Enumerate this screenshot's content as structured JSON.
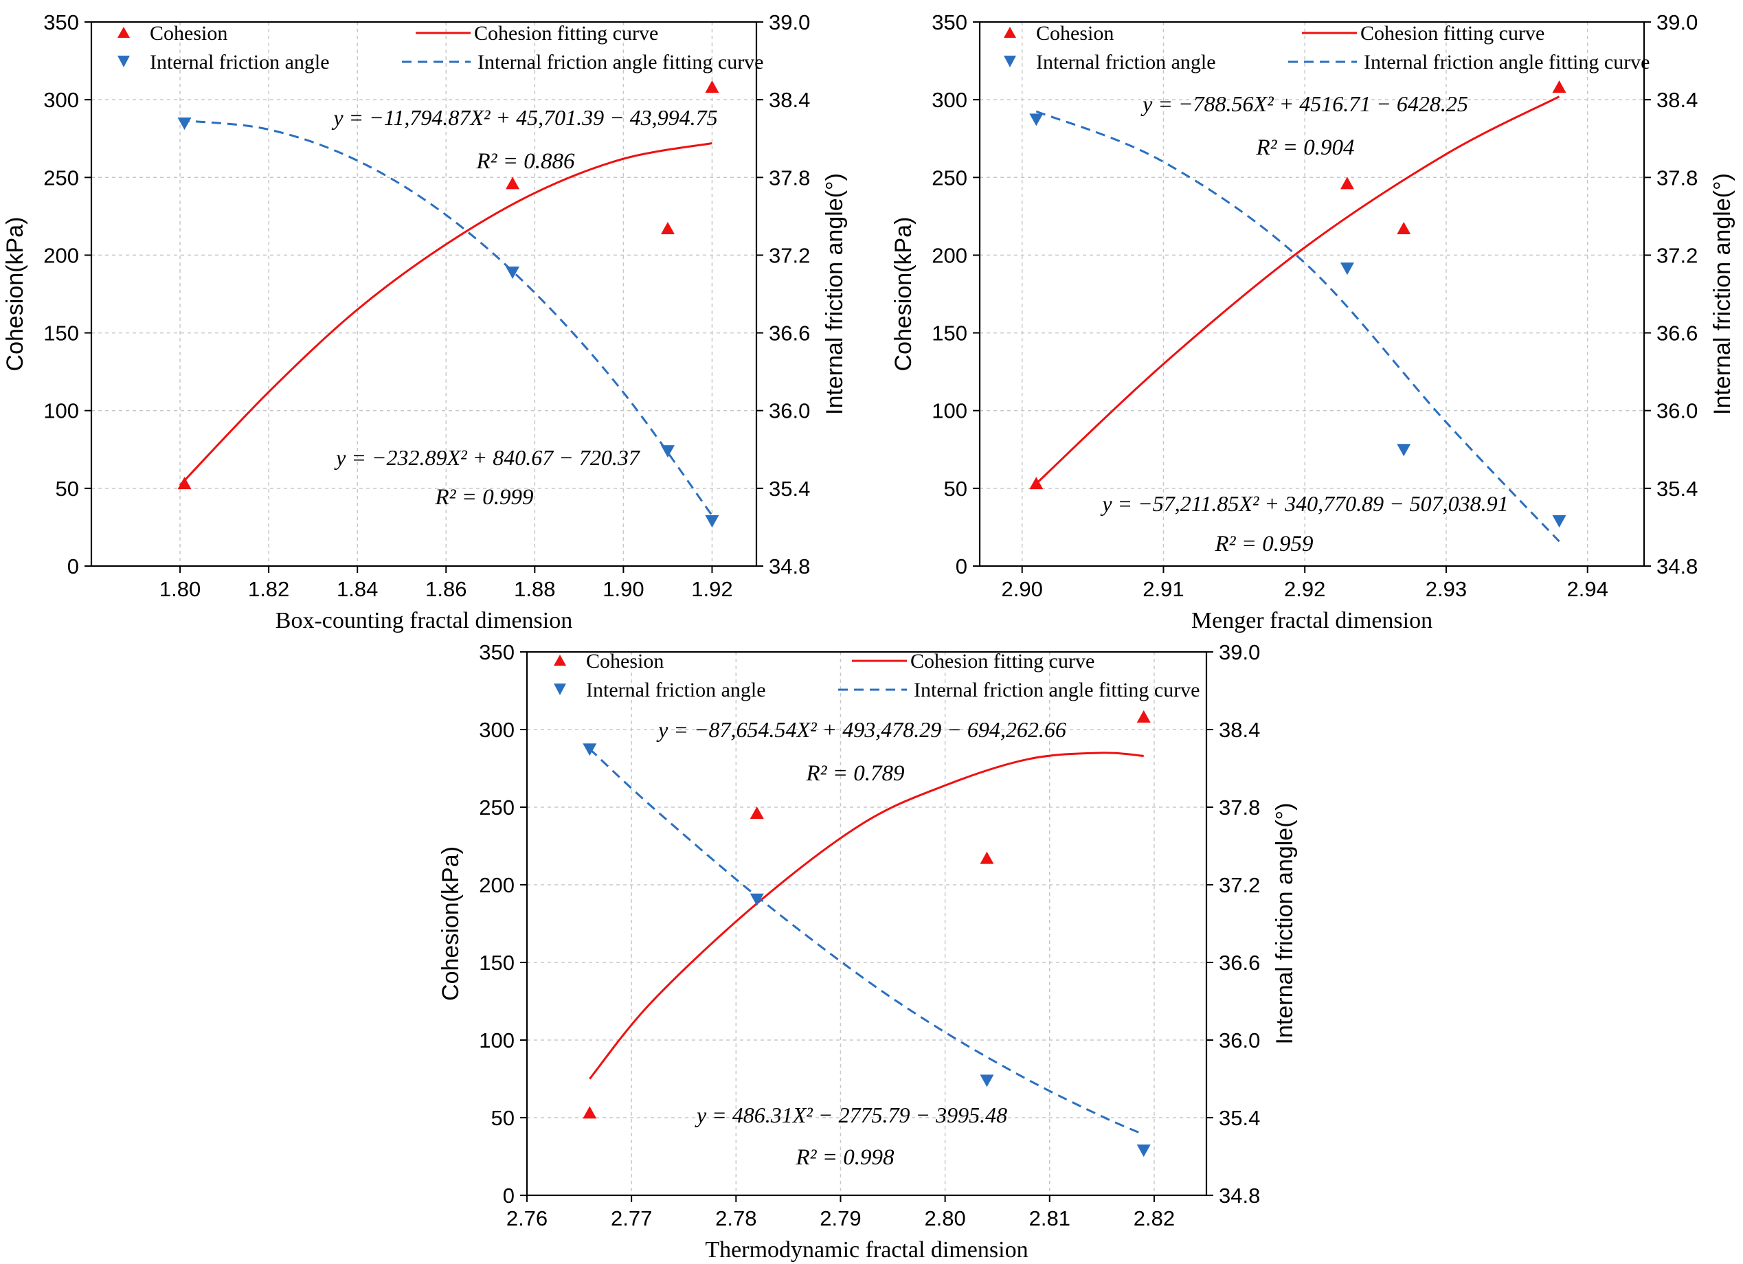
{
  "legend": {
    "cohesion": "Cohesion",
    "cohesion_fit": "Cohesion fitting curve",
    "friction": "Internal friction angle",
    "friction_fit": "Internal friction angle fitting curve"
  },
  "colors": {
    "cohesion": "#ee1111",
    "friction": "#2a6fbf",
    "grid": "#c8c8c8"
  },
  "chart_data": [
    {
      "type": "scatter",
      "xlabel": "Box-counting fractal dimension",
      "ylabel_left": "Cohesion(kPa)",
      "ylabel_right": "Internal friction angle(°)",
      "xlim": [
        1.78,
        1.93
      ],
      "xticks": [
        "1.80",
        "1.82",
        "1.84",
        "1.86",
        "1.88",
        "1.90",
        "1.92"
      ],
      "ylim_left": [
        0,
        350
      ],
      "yticks_left": [
        "0",
        "50",
        "100",
        "150",
        "200",
        "250",
        "300",
        "350"
      ],
      "ylim_right": [
        34.8,
        39.0
      ],
      "yticks_right": [
        "34.8",
        "35.4",
        "36.0",
        "36.6",
        "37.2",
        "37.8",
        "38.4",
        "39.0"
      ],
      "cohesion_points": {
        "x": [
          1.801,
          1.875,
          1.91,
          1.92
        ],
        "y": [
          53,
          246,
          217,
          308
        ]
      },
      "friction_points": {
        "x": [
          1.801,
          1.875,
          1.91,
          1.92
        ],
        "y": [
          38.22,
          37.07,
          35.69,
          35.15
        ]
      },
      "cohesion_curve": {
        "x": [
          1.8,
          1.82,
          1.84,
          1.86,
          1.88,
          1.9,
          1.92
        ],
        "y": [
          52,
          112,
          165,
          207,
          240,
          262,
          272
        ]
      },
      "friction_curve": {
        "x": [
          1.8,
          1.82,
          1.84,
          1.86,
          1.88,
          1.9,
          1.92
        ],
        "y": [
          38.24,
          38.17,
          37.93,
          37.51,
          36.91,
          36.14,
          35.19
        ]
      },
      "cohesion_equation": "y = −11,794.87X² + 45,701.39 − 43,994.75",
      "cohesion_r2": "R² = 0.886",
      "friction_equation": "y = −232.89X² + 840.67 − 720.37",
      "friction_r2": "R² = 0.999"
    },
    {
      "type": "scatter",
      "xlabel": "Menger fractal dimension",
      "ylabel_left": "Cohesion(kPa)",
      "ylabel_right": "Internal friction angle(°)",
      "xlim": [
        2.897,
        2.944
      ],
      "xticks": [
        "2.90",
        "2.91",
        "2.92",
        "2.93",
        "2.94"
      ],
      "ylim_left": [
        0,
        350
      ],
      "yticks_left": [
        "0",
        "50",
        "100",
        "150",
        "200",
        "250",
        "300",
        "350"
      ],
      "ylim_right": [
        34.8,
        39.0
      ],
      "yticks_right": [
        "34.8",
        "35.4",
        "36.0",
        "36.6",
        "37.2",
        "37.8",
        "38.4",
        "39.0"
      ],
      "cohesion_points": {
        "x": [
          2.901,
          2.923,
          2.927,
          2.938
        ],
        "y": [
          53,
          246,
          217,
          308
        ]
      },
      "friction_points": {
        "x": [
          2.901,
          2.923,
          2.927,
          2.938
        ],
        "y": [
          38.25,
          37.1,
          35.7,
          35.15
        ]
      },
      "cohesion_curve": {
        "x": [
          2.901,
          2.91,
          2.92,
          2.93,
          2.938
        ],
        "y": [
          53,
          130,
          205,
          265,
          302
        ]
      },
      "friction_curve": {
        "x": [
          2.901,
          2.91,
          2.92,
          2.93,
          2.938
        ],
        "y": [
          38.31,
          37.92,
          37.14,
          35.91,
          34.99
        ]
      },
      "cohesion_equation": "y = −788.56X² + 4516.71 − 6428.25",
      "cohesion_r2": "R² = 0.904",
      "friction_equation": "y = −57,211.85X² + 340,770.89 − 507,038.91",
      "friction_r2": "R² = 0.959"
    },
    {
      "type": "scatter",
      "xlabel": "Thermodynamic fractal dimension",
      "ylabel_left": "Cohesion(kPa)",
      "ylabel_right": "Internal friction angle(°)",
      "xlim": [
        2.76,
        2.825
      ],
      "xticks": [
        "2.76",
        "2.77",
        "2.78",
        "2.79",
        "2.80",
        "2.81",
        "2.82"
      ],
      "ylim_left": [
        0,
        350
      ],
      "yticks_left": [
        "0",
        "50",
        "100",
        "150",
        "200",
        "250",
        "300",
        "350"
      ],
      "ylim_right": [
        34.8,
        39.0
      ],
      "yticks_right": [
        "34.8",
        "35.4",
        "36.0",
        "36.6",
        "37.2",
        "37.8",
        "38.4",
        "39.0"
      ],
      "cohesion_points": {
        "x": [
          2.766,
          2.782,
          2.804,
          2.819
        ],
        "y": [
          53,
          246,
          217,
          308
        ]
      },
      "friction_points": {
        "x": [
          2.766,
          2.782,
          2.804,
          2.819
        ],
        "y": [
          38.25,
          37.09,
          35.69,
          35.15
        ]
      },
      "cohesion_curve": {
        "x": [
          2.766,
          2.772,
          2.782,
          2.792,
          2.8,
          2.808,
          2.815,
          2.819
        ],
        "y": [
          75,
          125,
          188,
          239,
          264,
          281,
          285,
          283
        ]
      },
      "friction_curve": {
        "x": [
          2.766,
          2.772,
          2.782,
          2.792,
          2.8,
          2.808,
          2.815,
          2.819
        ],
        "y": [
          38.25,
          37.8,
          37.11,
          36.49,
          36.06,
          35.69,
          35.41,
          35.27
        ]
      },
      "cohesion_equation": "y = −87,654.54X² + 493,478.29 − 694,262.66",
      "cohesion_r2": "R² = 0.789",
      "friction_equation": "y = 486.31X² − 2775.79 − 3995.48",
      "friction_r2": "R² = 0.998"
    }
  ]
}
